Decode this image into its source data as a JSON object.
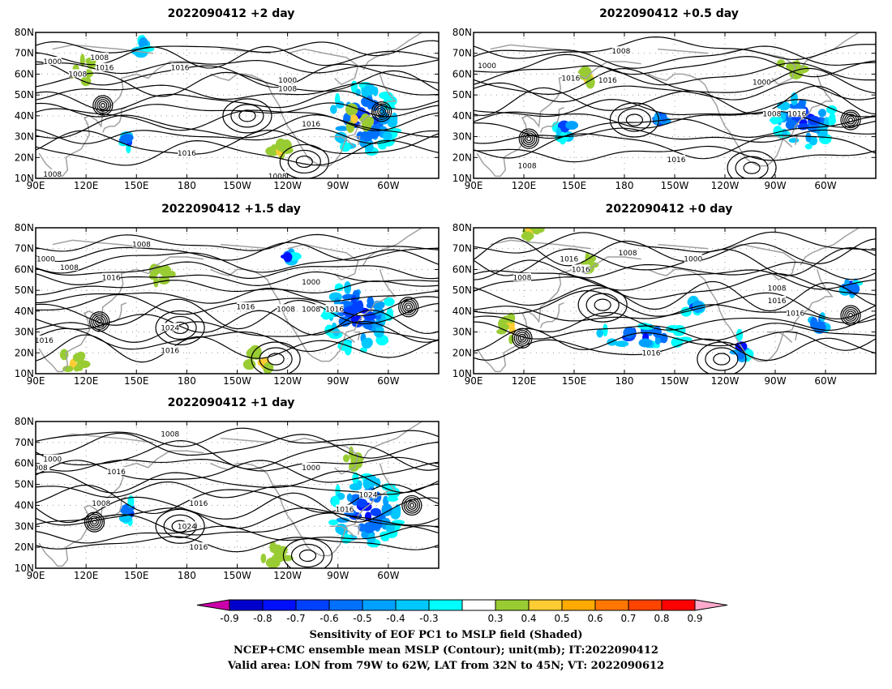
{
  "panels": [
    {
      "id": "p2",
      "title": "2022090412 +2 day",
      "x_ticks": [
        "90E",
        "120E",
        "150E",
        "180",
        "150W",
        "120W",
        "90W",
        "60W"
      ],
      "y_ticks": [
        "10N",
        "20N",
        "30N",
        "40N",
        "50N",
        "60N",
        "70N",
        "80N"
      ],
      "contour_labels": [
        {
          "text": "1000",
          "lon": 100,
          "lat": 66
        },
        {
          "text": "1008",
          "lon": 115,
          "lat": 60
        },
        {
          "text": "1008",
          "lon": 128,
          "lat": 68
        },
        {
          "text": "1016",
          "lon": 131,
          "lat": 63
        },
        {
          "text": "1016",
          "lon": 176,
          "lat": 63
        },
        {
          "text": "1000",
          "lon": 240,
          "lat": 57
        },
        {
          "text": "1008",
          "lon": 240,
          "lat": 53
        },
        {
          "text": "1016",
          "lon": 254,
          "lat": 36
        },
        {
          "text": "1016",
          "lon": 180,
          "lat": 22
        },
        {
          "text": "1008",
          "lon": 100,
          "lat": 12
        },
        {
          "text": "1008",
          "lon": 234,
          "lat": 11
        }
      ],
      "highs": [
        [
          216,
          40
        ],
        [
          250,
          18
        ]
      ],
      "lows": [
        [
          130,
          45
        ],
        [
          296,
          42
        ]
      ],
      "sens_pos": [
        [
          118,
          62,
          8,
          6
        ],
        [
          282,
          38,
          8,
          6
        ],
        [
          236,
          24,
          6,
          3
        ]
      ],
      "sens_neg": [
        [
          285,
          38,
          20,
          17
        ],
        [
          145,
          28,
          3,
          4
        ],
        [
          153,
          73,
          4,
          3
        ]
      ]
    },
    {
      "id": "p05",
      "title": "2022090412 +0.5 day",
      "x_ticks": [
        "90E",
        "120E",
        "150E",
        "180",
        "150W",
        "120W",
        "90W",
        "60W"
      ],
      "y_ticks": [
        "10N",
        "20N",
        "30N",
        "40N",
        "50N",
        "60N",
        "70N",
        "80N"
      ],
      "contour_labels": [
        {
          "text": "1000",
          "lon": 98,
          "lat": 64
        },
        {
          "text": "1008",
          "lon": 178,
          "lat": 71
        },
        {
          "text": "1016",
          "lon": 148,
          "lat": 58
        },
        {
          "text": "1016",
          "lon": 170,
          "lat": 57
        },
        {
          "text": "1000",
          "lon": 262,
          "lat": 56
        },
        {
          "text": "1008",
          "lon": 268,
          "lat": 41
        },
        {
          "text": "1016",
          "lon": 283,
          "lat": 41
        },
        {
          "text": "1016",
          "lon": 211,
          "lat": 19
        },
        {
          "text": "1008",
          "lon": 122,
          "lat": 16
        }
      ],
      "highs": [
        [
          186,
          38
        ],
        [
          256,
          15
        ]
      ],
      "lows": [
        [
          123,
          29
        ],
        [
          315,
          38
        ]
      ],
      "sens_pos": [
        [
          278,
          62,
          8,
          4
        ],
        [
          158,
          58,
          4,
          3
        ]
      ],
      "sens_neg": [
        [
          287,
          38,
          18,
          13
        ],
        [
          145,
          34,
          6,
          5
        ],
        [
          202,
          37,
          4,
          5
        ]
      ]
    },
    {
      "id": "p15",
      "title": "2022090412 +1.5 day",
      "x_ticks": [
        "90E",
        "120E",
        "150E",
        "180",
        "150W",
        "120W",
        "90W",
        "60W"
      ],
      "y_ticks": [
        "10N",
        "20N",
        "30N",
        "40N",
        "50N",
        "60N",
        "70N",
        "80N"
      ],
      "contour_labels": [
        {
          "text": "1008",
          "lon": 153,
          "lat": 72
        },
        {
          "text": "1000",
          "lon": 96,
          "lat": 65
        },
        {
          "text": "1008",
          "lon": 110,
          "lat": 61
        },
        {
          "text": "1016",
          "lon": 135,
          "lat": 56
        },
        {
          "text": "1000",
          "lon": 254,
          "lat": 54
        },
        {
          "text": "1016",
          "lon": 215,
          "lat": 42
        },
        {
          "text": "1008",
          "lon": 239,
          "lat": 41
        },
        {
          "text": "1008",
          "lon": 254,
          "lat": 41
        },
        {
          "text": "1016",
          "lon": 268,
          "lat": 41
        },
        {
          "text": "1024",
          "lon": 170,
          "lat": 32
        },
        {
          "text": "1016",
          "lon": 170,
          "lat": 21
        },
        {
          "text": "1016",
          "lon": 95,
          "lat": 26
        }
      ],
      "highs": [
        [
          176,
          32
        ],
        [
          233,
          17
        ]
      ],
      "lows": [
        [
          128,
          35
        ],
        [
          312,
          42
        ]
      ],
      "sens_pos": [
        [
          224,
          16,
          10,
          5
        ],
        [
          165,
          57,
          6,
          4
        ],
        [
          112,
          16,
          8,
          5
        ]
      ],
      "sens_neg": [
        [
          282,
          38,
          20,
          17
        ],
        [
          240,
          66,
          4,
          3
        ]
      ]
    },
    {
      "id": "p0",
      "title": "2022090412 +0 day",
      "x_ticks": [
        "90E",
        "120E",
        "150E",
        "180",
        "150W",
        "120W",
        "90W",
        "60W"
      ],
      "y_ticks": [
        "10N",
        "20N",
        "30N",
        "40N",
        "50N",
        "60N",
        "70N",
        "80N"
      ],
      "contour_labels": [
        {
          "text": "1016",
          "lon": 147,
          "lat": 65
        },
        {
          "text": "1008",
          "lon": 182,
          "lat": 68
        },
        {
          "text": "1000",
          "lon": 221,
          "lat": 65
        },
        {
          "text": "1016",
          "lon": 154,
          "lat": 60
        },
        {
          "text": "1008",
          "lon": 119,
          "lat": 56
        },
        {
          "text": "1008",
          "lon": 271,
          "lat": 51
        },
        {
          "text": "1016",
          "lon": 271,
          "lat": 45
        },
        {
          "text": "1016",
          "lon": 282,
          "lat": 39
        },
        {
          "text": "1016",
          "lon": 196,
          "lat": 20
        }
      ],
      "highs": [
        [
          167,
          43
        ],
        [
          238,
          17
        ]
      ],
      "lows": [
        [
          119,
          27
        ],
        [
          315,
          38
        ]
      ],
      "sens_pos": [
        [
          112,
          32,
          6,
          6
        ],
        [
          126,
          78,
          6,
          3
        ],
        [
          158,
          63,
          3,
          3
        ]
      ],
      "sens_neg": [
        [
          190,
          28,
          28,
          5
        ],
        [
          250,
          22,
          5,
          7
        ],
        [
          220,
          42,
          6,
          3
        ],
        [
          296,
          34,
          6,
          4
        ],
        [
          315,
          52,
          5,
          4
        ]
      ]
    },
    {
      "id": "p1",
      "title": "2022090412 +1 day",
      "x_ticks": [
        "90E",
        "120E",
        "150E",
        "180",
        "150W",
        "120W",
        "90W",
        "60W"
      ],
      "y_ticks": [
        "10N",
        "20N",
        "30N",
        "40N",
        "50N",
        "60N",
        "70N",
        "80N"
      ],
      "contour_labels": [
        {
          "text": "1008",
          "lon": 170,
          "lat": 74
        },
        {
          "text": "1000",
          "lon": 100,
          "lat": 62
        },
        {
          "text": "008",
          "lon": 93,
          "lat": 58
        },
        {
          "text": "1016",
          "lon": 138,
          "lat": 56
        },
        {
          "text": "1000",
          "lon": 254,
          "lat": 58
        },
        {
          "text": "1024",
          "lon": 288,
          "lat": 45
        },
        {
          "text": "1016",
          "lon": 187,
          "lat": 41
        },
        {
          "text": "1016",
          "lon": 274,
          "lat": 38
        },
        {
          "text": "1008",
          "lon": 129,
          "lat": 41
        },
        {
          "text": "1024",
          "lon": 180,
          "lat": 30
        },
        {
          "text": "1016",
          "lon": 187,
          "lat": 20
        }
      ],
      "highs": [
        [
          176,
          30
        ],
        [
          252,
          16
        ]
      ],
      "lows": [
        [
          125,
          32
        ],
        [
          314,
          40
        ]
      ],
      "sens_pos": [
        [
          232,
          16,
          8,
          4
        ],
        [
          278,
          62,
          6,
          4
        ]
      ],
      "sens_neg": [
        [
          286,
          37,
          21,
          17
        ],
        [
          146,
          37,
          4,
          5
        ]
      ]
    }
  ],
  "colorbar": {
    "labels": [
      "-0.9",
      "-0.8",
      "-0.7",
      "-0.6",
      "-0.5",
      "-0.4",
      "-0.3",
      "0.3",
      "0.4",
      "0.5",
      "0.6",
      "0.7",
      "0.8",
      "0.9"
    ],
    "colors": [
      "#cc00aa",
      "#0000cc",
      "#0010ff",
      "#0040ff",
      "#0070ff",
      "#00a0ff",
      "#00c8ff",
      "#00ffff",
      "#ffffff",
      "#99cc33",
      "#ffcc33",
      "#ffaa00",
      "#ff7700",
      "#ff4400",
      "#ff0000",
      "#ffaacc"
    ]
  },
  "footer": {
    "line1": "Sensitivity of EOF PC1 to MSLP field (Shaded)",
    "line2": "NCEP+CMC ensemble mean MSLP (Contour); unit(mb); IT:2022090412",
    "line3": "Valid area: LON from 79W to 62W, LAT from 32N to 45N; VT: 2022090612"
  }
}
